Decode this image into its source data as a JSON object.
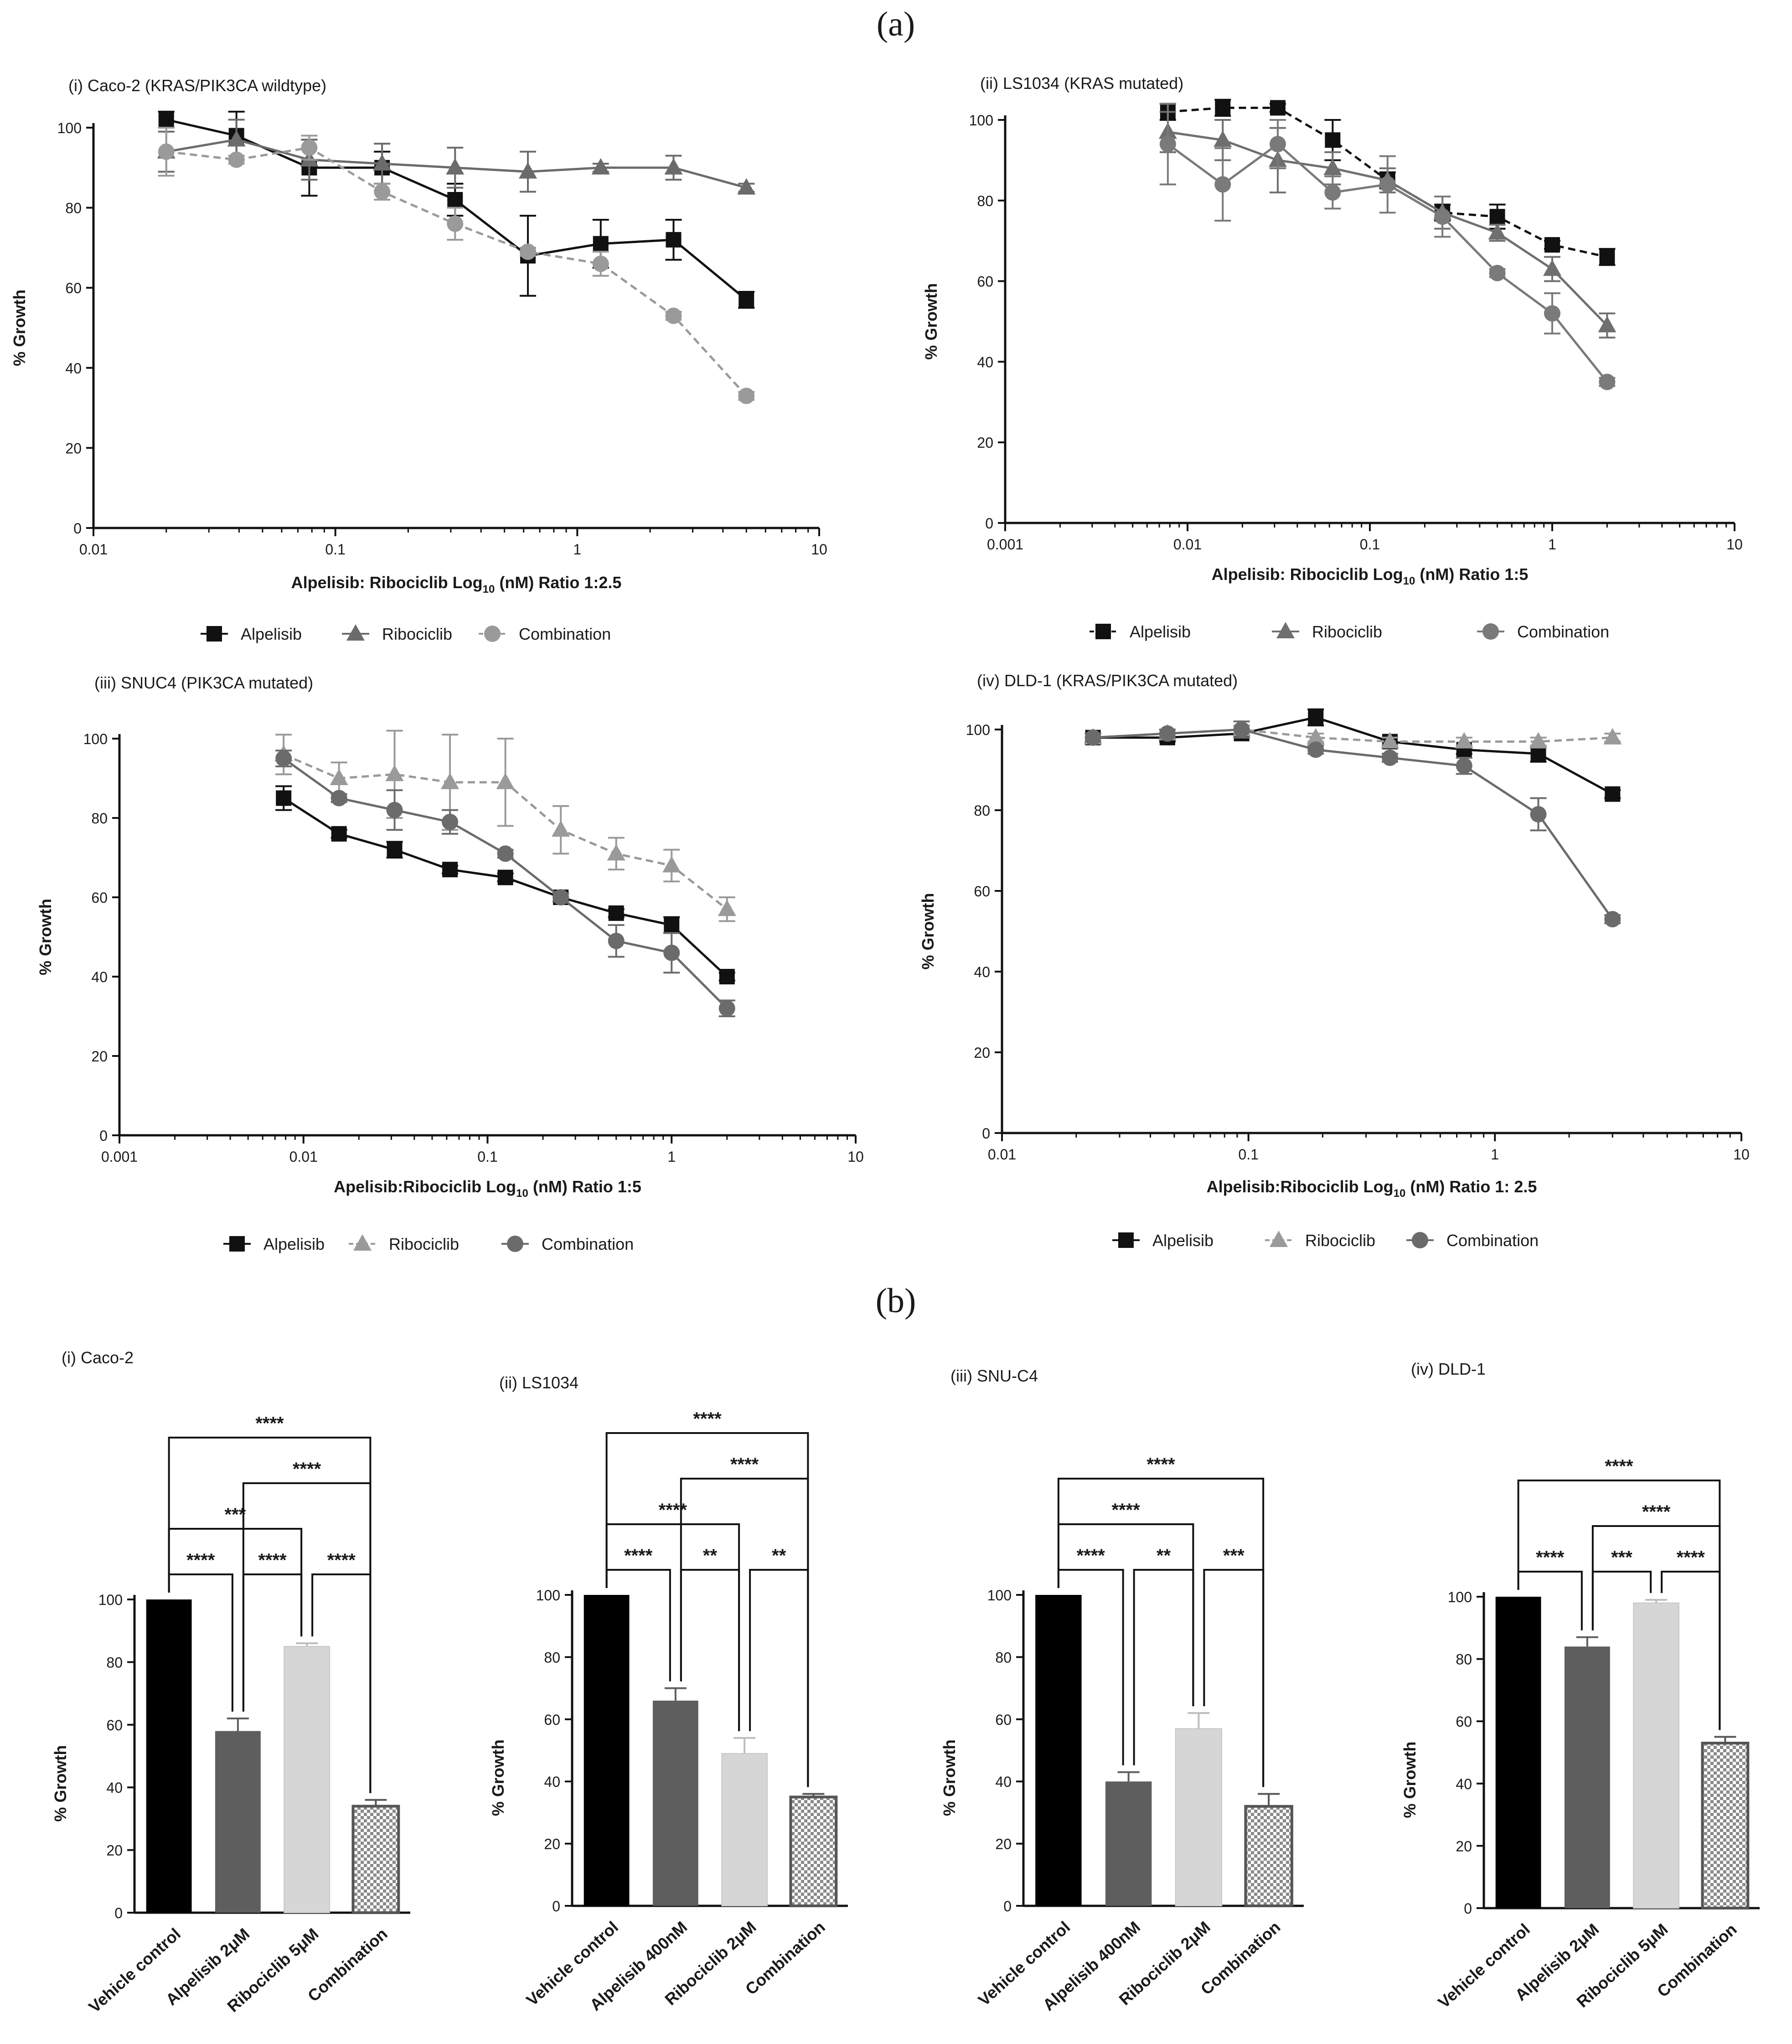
{
  "figure": {
    "panel_a_label": "(a)",
    "panel_b_label": "(b)"
  },
  "chart_data": [
    {
      "type": "line",
      "panel": "a-i",
      "title": "(i) Caco-2 (KRAS/PIK3CA wildtype)",
      "xlabel_main": "Alpelisib: Ribociclib Log",
      "xlabel_sub": "10",
      "xlabel_tail": " (nM) Ratio 1:2.5",
      "ylabel": "% Growth",
      "xscale": "log",
      "xlim": [
        0.01,
        10
      ],
      "xticks": [
        0.01,
        0.1,
        1,
        10
      ],
      "xtick_labels": [
        "0.01",
        "0.1",
        "1",
        "10"
      ],
      "ylim": [
        0,
        100
      ],
      "yticks": [
        0,
        20,
        40,
        60,
        80,
        100
      ],
      "legend": "bottom",
      "series": [
        {
          "name": "Alpelisib",
          "marker": "square",
          "color": "#111111",
          "dash": "solid",
          "x": [
            0.02,
            0.039,
            0.078,
            0.156,
            0.3125,
            0.625,
            1.25,
            2.5,
            5
          ],
          "y": [
            102,
            98,
            90,
            90,
            82,
            68,
            71,
            72,
            57
          ],
          "err": [
            2,
            6,
            7,
            4,
            4,
            10,
            6,
            5,
            2
          ]
        },
        {
          "name": "Ribociclib",
          "marker": "triangle",
          "color": "#6b6b6b",
          "dash": "solid",
          "x": [
            0.02,
            0.039,
            0.078,
            0.156,
            0.3125,
            0.625,
            1.25,
            2.5,
            5
          ],
          "y": [
            94,
            97,
            92,
            91,
            90,
            89,
            90,
            90,
            85
          ],
          "err": [
            5,
            5,
            5,
            5,
            5,
            5,
            1,
            3,
            1
          ]
        },
        {
          "name": "Combination",
          "marker": "circle",
          "color": "#9a9a9a",
          "dash": "dashed",
          "x": [
            0.02,
            0.039,
            0.078,
            0.156,
            0.3125,
            0.625,
            1.25,
            2.5,
            5
          ],
          "y": [
            94,
            92,
            95,
            84,
            76,
            69,
            66,
            53,
            33
          ],
          "err": [
            6,
            1,
            3,
            2,
            4,
            1,
            3,
            1,
            1
          ]
        }
      ]
    },
    {
      "type": "line",
      "panel": "a-ii",
      "title": "(ii) LS1034 (KRAS mutated)",
      "xlabel_main": "Alpelisib: Ribociclib Log",
      "xlabel_sub": "10",
      "xlabel_tail": " (nM) Ratio 1:5",
      "ylabel": "% Growth",
      "xscale": "log",
      "xlim": [
        0.001,
        10
      ],
      "xticks": [
        0.001,
        0.01,
        0.1,
        1,
        10
      ],
      "xtick_labels": [
        "0.001",
        "0.01",
        "0.1",
        "1",
        "10"
      ],
      "ylim": [
        0,
        100
      ],
      "yticks": [
        0,
        20,
        40,
        60,
        80,
        100
      ],
      "legend": "bottom",
      "series": [
        {
          "name": "Alpelisib",
          "marker": "square",
          "color": "#111111",
          "dash": "dashed",
          "x": [
            0.0078,
            0.0156,
            0.03125,
            0.0625,
            0.125,
            0.25,
            0.5,
            1,
            2
          ],
          "y": [
            102,
            103,
            103,
            95,
            85,
            77,
            76,
            69,
            66
          ],
          "err": [
            2,
            2,
            1,
            5,
            2,
            2,
            3,
            1,
            2
          ]
        },
        {
          "name": "Ribociclib",
          "marker": "triangle",
          "color": "#6f6f6f",
          "dash": "solid",
          "x": [
            0.0078,
            0.0156,
            0.03125,
            0.0625,
            0.125,
            0.25,
            0.5,
            1,
            2
          ],
          "y": [
            97,
            95,
            90,
            88,
            85,
            77,
            72,
            63,
            49
          ],
          "err": [
            5,
            5,
            8,
            4,
            3,
            4,
            2,
            3,
            3
          ]
        },
        {
          "name": "Combination",
          "marker": "circle",
          "color": "#7a7a7a",
          "dash": "solid",
          "x": [
            0.0078,
            0.0156,
            0.03125,
            0.0625,
            0.125,
            0.25,
            0.5,
            1,
            2
          ],
          "y": [
            94,
            84,
            94,
            82,
            84,
            76,
            62,
            52,
            35
          ],
          "err": [
            10,
            9,
            6,
            4,
            7,
            5,
            1,
            5,
            1
          ]
        }
      ]
    },
    {
      "type": "line",
      "panel": "a-iii",
      "title": "(iii) SNUC4 (PIK3CA mutated)",
      "xlabel_main": "Apelisib:Ribociclib Log",
      "xlabel_sub": "10",
      "xlabel_tail": " (nM) Ratio 1:5",
      "ylabel": "% Growth",
      "xscale": "log",
      "xlim": [
        0.001,
        10
      ],
      "xticks": [
        0.001,
        0.01,
        0.1,
        1,
        10
      ],
      "xtick_labels": [
        "0.001",
        "0.01",
        "0.1",
        "1",
        "10"
      ],
      "ylim": [
        0,
        100
      ],
      "yticks": [
        0,
        20,
        40,
        60,
        80,
        100
      ],
      "legend": "bottom",
      "series": [
        {
          "name": "Alpelisib",
          "marker": "square",
          "color": "#111111",
          "dash": "solid",
          "x": [
            0.0078,
            0.0156,
            0.03125,
            0.0625,
            0.125,
            0.25,
            0.5,
            1,
            2
          ],
          "y": [
            85,
            76,
            72,
            67,
            65,
            60,
            56,
            53,
            40
          ],
          "err": [
            3,
            1,
            2,
            1,
            1,
            1,
            1,
            2,
            1
          ]
        },
        {
          "name": "Ribociclib",
          "marker": "triangle",
          "color": "#9a9a9a",
          "dash": "dashed",
          "x": [
            0.0078,
            0.0156,
            0.03125,
            0.0625,
            0.125,
            0.25,
            0.5,
            1,
            2
          ],
          "y": [
            96,
            90,
            91,
            89,
            89,
            77,
            71,
            68,
            57
          ],
          "err": [
            5,
            4,
            11,
            12,
            11,
            6,
            4,
            4,
            3
          ]
        },
        {
          "name": "Combination",
          "marker": "circle",
          "color": "#6b6b6b",
          "dash": "solid",
          "x": [
            0.0078,
            0.0156,
            0.03125,
            0.0625,
            0.125,
            0.25,
            0.5,
            1,
            2
          ],
          "y": [
            95,
            85,
            82,
            79,
            71,
            60,
            49,
            46,
            32
          ],
          "err": [
            2,
            1,
            5,
            3,
            1,
            1,
            4,
            5,
            2
          ]
        }
      ]
    },
    {
      "type": "line",
      "panel": "a-iv",
      "title": "(iv) DLD-1 (KRAS/PIK3CA mutated)",
      "xlabel_main": "Alpelisib:Ribociclib Log",
      "xlabel_sub": "10",
      "xlabel_tail": " (nM) Ratio 1: 2.5",
      "ylabel": "% Growth",
      "xscale": "log",
      "xlim": [
        0.01,
        10
      ],
      "xticks": [
        0.01,
        0.1,
        1,
        10
      ],
      "xtick_labels": [
        "0.01",
        "0.1",
        "1",
        "10"
      ],
      "ylim": [
        0,
        100
      ],
      "yticks": [
        0,
        20,
        40,
        60,
        80,
        100
      ],
      "legend": "bottom",
      "series": [
        {
          "name": "Alpelisib",
          "marker": "square",
          "color": "#111111",
          "dash": "solid",
          "x": [
            0.0234,
            0.0469,
            0.0938,
            0.1875,
            0.375,
            0.75,
            1.5,
            3
          ],
          "y": [
            98,
            98,
            99,
            103,
            97,
            95,
            94,
            84
          ],
          "err": [
            1,
            1,
            1,
            2,
            1,
            1,
            2,
            1
          ]
        },
        {
          "name": "Ribociclib",
          "marker": "triangle",
          "color": "#9a9a9a",
          "dash": "dashed",
          "x": [
            0.0234,
            0.0469,
            0.0938,
            0.1875,
            0.375,
            0.75,
            1.5,
            3
          ],
          "y": [
            98,
            99,
            100,
            98,
            97,
            97,
            97,
            98
          ],
          "err": [
            1,
            1,
            1,
            1,
            1,
            1,
            1,
            1
          ]
        },
        {
          "name": "Combination",
          "marker": "circle",
          "color": "#6b6b6b",
          "dash": "solid",
          "x": [
            0.0234,
            0.0469,
            0.0938,
            0.1875,
            0.375,
            0.75,
            1.5,
            3
          ],
          "y": [
            98,
            99,
            100,
            95,
            93,
            91,
            79,
            53
          ],
          "err": [
            1,
            1,
            2,
            1,
            1,
            2,
            4,
            1
          ]
        }
      ]
    },
    {
      "type": "bar",
      "panel": "b-i",
      "title": "(i) Caco-2",
      "ylabel": "% Growth",
      "ylim": [
        0,
        100
      ],
      "yticks": [
        0,
        20,
        40,
        60,
        80,
        100
      ],
      "categories": [
        "Vehicle control",
        "Alpelisib 2μM",
        "Ribociclib 5μM",
        "Combination"
      ],
      "values": [
        100,
        58,
        85,
        34
      ],
      "errors": [
        0,
        4,
        1,
        2
      ],
      "fills": [
        "black",
        "dark",
        "light",
        "checker"
      ],
      "significance": [
        {
          "from": 0,
          "to": 1,
          "label": "****"
        },
        {
          "from": 1,
          "to": 2,
          "label": "****"
        },
        {
          "from": 0,
          "to": 2,
          "label": "***"
        },
        {
          "from": 2,
          "to": 3,
          "label": "****"
        },
        {
          "from": 1,
          "to": 3,
          "label": "****"
        },
        {
          "from": 0,
          "to": 3,
          "label": "****"
        }
      ]
    },
    {
      "type": "bar",
      "panel": "b-ii",
      "title": "(ii) LS1034",
      "ylabel": "% Growth",
      "ylim": [
        0,
        100
      ],
      "yticks": [
        0,
        20,
        40,
        60,
        80,
        100
      ],
      "categories": [
        "Vehicle control",
        "Alpelisib 400nM",
        "Ribociclib 2μM",
        "Combination"
      ],
      "values": [
        100,
        66,
        49,
        35
      ],
      "errors": [
        0,
        4,
        5,
        1
      ],
      "fills": [
        "black",
        "dark",
        "light",
        "checker"
      ],
      "significance": [
        {
          "from": 0,
          "to": 1,
          "label": "****"
        },
        {
          "from": 1,
          "to": 2,
          "label": "**"
        },
        {
          "from": 2,
          "to": 3,
          "label": "**"
        },
        {
          "from": 0,
          "to": 2,
          "label": "****"
        },
        {
          "from": 1,
          "to": 3,
          "label": "****"
        },
        {
          "from": 0,
          "to": 3,
          "label": "****"
        }
      ]
    },
    {
      "type": "bar",
      "panel": "b-iii",
      "title": "(iii) SNU-C4",
      "ylabel": "% Growth",
      "ylim": [
        0,
        100
      ],
      "yticks": [
        0,
        20,
        40,
        60,
        80,
        100
      ],
      "categories": [
        "Vehicle control",
        "Alpelisib 400nM",
        "Ribociclib 2μM",
        "Combination"
      ],
      "values": [
        100,
        40,
        57,
        32
      ],
      "errors": [
        0,
        3,
        5,
        4
      ],
      "fills": [
        "black",
        "dark",
        "light",
        "checker"
      ],
      "significance": [
        {
          "from": 0,
          "to": 1,
          "label": "****"
        },
        {
          "from": 1,
          "to": 2,
          "label": "**"
        },
        {
          "from": 2,
          "to": 3,
          "label": "***"
        },
        {
          "from": 0,
          "to": 2,
          "label": "****"
        },
        {
          "from": 0,
          "to": 3,
          "label": "****"
        }
      ]
    },
    {
      "type": "bar",
      "panel": "b-iv",
      "title": "(iv) DLD-1",
      "ylabel": "% Growth",
      "ylim": [
        0,
        100
      ],
      "yticks": [
        0,
        20,
        40,
        60,
        80,
        100
      ],
      "categories": [
        "Vehicle control",
        "Alpelisib 2μM",
        "Ribociclib 5μM",
        "Combination"
      ],
      "values": [
        100,
        84,
        98,
        53
      ],
      "errors": [
        0,
        3,
        1,
        2
      ],
      "fills": [
        "black",
        "dark",
        "light",
        "checker"
      ],
      "significance": [
        {
          "from": 0,
          "to": 1,
          "label": "****"
        },
        {
          "from": 1,
          "to": 2,
          "label": "***"
        },
        {
          "from": 2,
          "to": 3,
          "label": "****"
        },
        {
          "from": 1,
          "to": 3,
          "label": "****"
        },
        {
          "from": 0,
          "to": 3,
          "label": "****"
        }
      ]
    }
  ]
}
